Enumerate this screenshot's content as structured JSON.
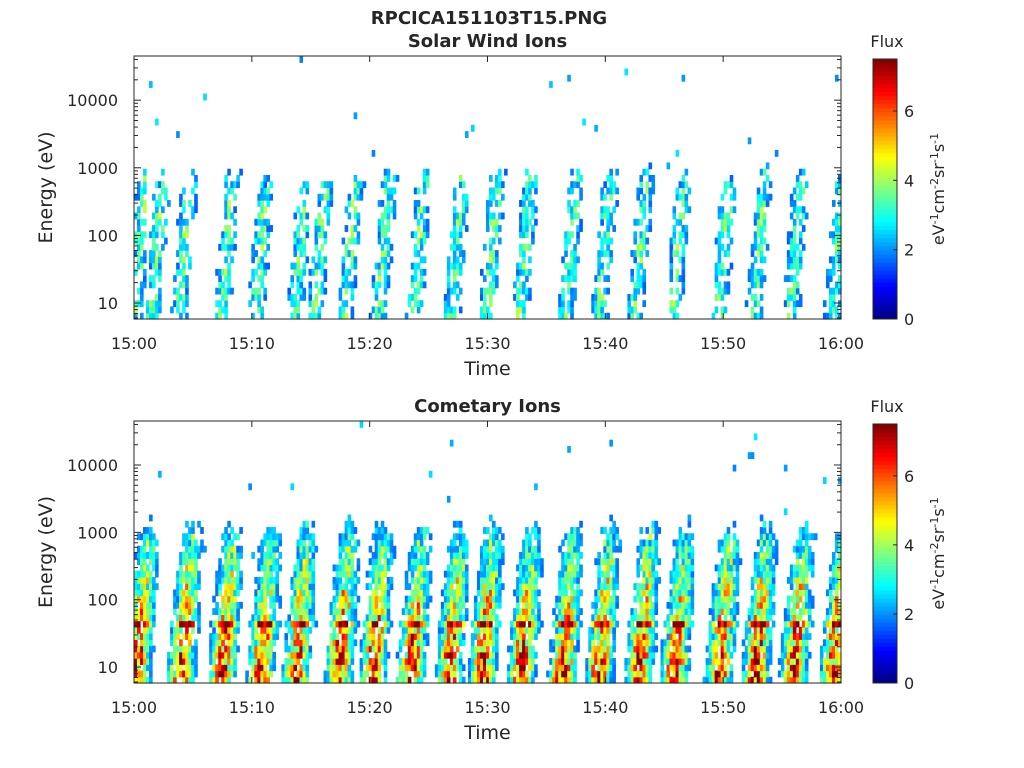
{
  "figure": {
    "title": "RPCICA151103T15.PNG"
  },
  "chart_data": [
    {
      "type": "heatmap",
      "title": "Solar Wind Ions",
      "xlabel": "Time",
      "ylabel": "Energy (eV)",
      "x_ticks": [
        "15:00",
        "15:10",
        "15:20",
        "15:30",
        "15:40",
        "15:50",
        "16:00"
      ],
      "y_ticks": [
        "10",
        "100",
        "1000",
        "10000"
      ],
      "y_scale": "log",
      "xlim": [
        "15:00",
        "16:00"
      ],
      "ylim": [
        5.8,
        45000
      ],
      "colorbar": {
        "label": "Flux",
        "unit": "eV-1cm-2sr-1s-1",
        "range": [
          0,
          7.5
        ],
        "ticks": [
          "0",
          "2",
          "4",
          "6"
        ],
        "colormap": "jet"
      },
      "bursts_minutes": [
        0.3,
        1.8,
        4.1,
        7.7,
        10.6,
        13.9,
        15.6,
        18.2,
        21,
        24,
        27.2,
        30.2,
        33,
        36.9,
        39.8,
        42.8,
        46,
        49.9,
        52.9,
        56,
        59.5
      ],
      "burst_peak_flux": 3.3,
      "burst_top_energy_ev": 500
    },
    {
      "type": "heatmap",
      "title": "Cometary Ions",
      "xlabel": "Time",
      "ylabel": "Energy (eV)",
      "x_ticks": [
        "15:00",
        "15:10",
        "15:20",
        "15:30",
        "15:40",
        "15:50",
        "16:00"
      ],
      "y_ticks": [
        "10",
        "100",
        "1000",
        "10000"
      ],
      "y_scale": "log",
      "xlim": [
        "15:00",
        "16:00"
      ],
      "ylim": [
        5.8,
        45000
      ],
      "colorbar": {
        "label": "Flux",
        "unit": "eV-1cm-2sr-1s-1",
        "range": [
          0,
          7.5
        ],
        "ticks": [
          "0",
          "2",
          "4",
          "6"
        ],
        "colormap": "jet"
      },
      "bursts_minutes": [
        0.5,
        4.2,
        7.7,
        11,
        14,
        17.6,
        20.5,
        23.7,
        27,
        29.8,
        33.1,
        36.6,
        39.7,
        43.1,
        46.1,
        49.9,
        53,
        56.2,
        59.6
      ],
      "burst_peak_flux": 6.3,
      "burst_top_energy_ev": 800
    }
  ]
}
